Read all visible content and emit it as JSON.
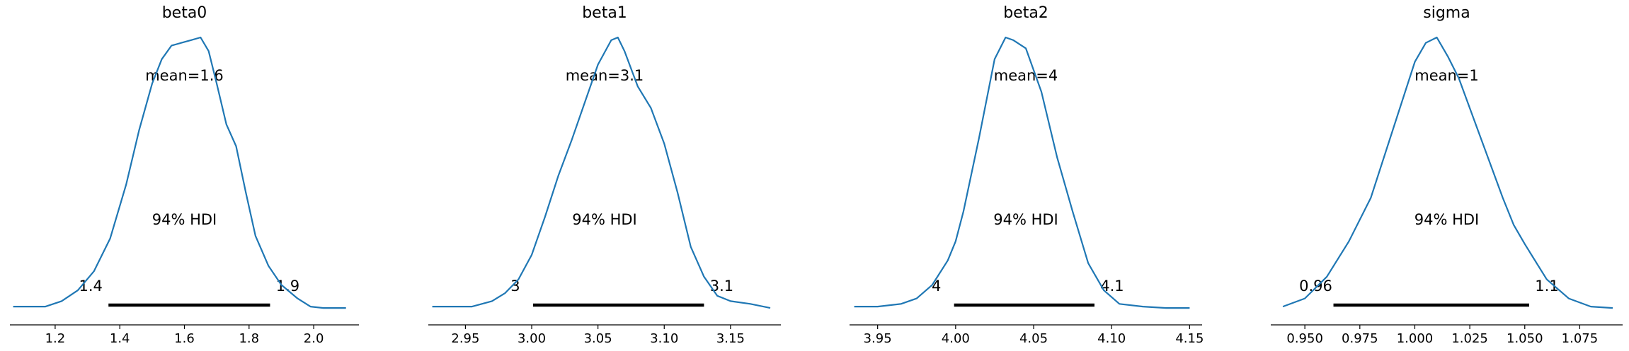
{
  "chart_data": [
    {
      "type": "area",
      "title": "beta0",
      "xlim": [
        1.06,
        2.14
      ],
      "ticks": [
        1.2,
        1.4,
        1.6,
        1.8,
        2.0
      ],
      "tick_labels": [
        "1.2",
        "1.4",
        "1.6",
        "1.8",
        "2.0"
      ],
      "mean_label": "mean=1.6",
      "hdi_label": "94% HDI",
      "hdi": [
        1.365,
        1.865
      ],
      "hdi_low_label": "1.4",
      "hdi_high_label": "1.9",
      "density": {
        "x": [
          1.07,
          1.12,
          1.17,
          1.22,
          1.27,
          1.32,
          1.37,
          1.42,
          1.46,
          1.5,
          1.53,
          1.56,
          1.59,
          1.62,
          1.65,
          1.675,
          1.7,
          1.73,
          1.76,
          1.79,
          1.82,
          1.86,
          1.9,
          1.95,
          1.99,
          2.03,
          2.07,
          2.1
        ],
        "y": [
          0.01,
          0.01,
          0.01,
          0.03,
          0.07,
          0.14,
          0.26,
          0.46,
          0.66,
          0.83,
          0.92,
          0.97,
          0.98,
          0.99,
          1.0,
          0.95,
          0.83,
          0.68,
          0.6,
          0.43,
          0.27,
          0.16,
          0.09,
          0.04,
          0.01,
          0.005,
          0.005,
          0.005
        ]
      }
    },
    {
      "type": "area",
      "title": "beta1",
      "xlim": [
        2.922,
        3.188
      ],
      "ticks": [
        2.95,
        3.0,
        3.05,
        3.1,
        3.15
      ],
      "tick_labels": [
        "2.95",
        "3.00",
        "3.05",
        "3.10",
        "3.15"
      ],
      "mean_label": "mean=3.1",
      "hdi_label": "94% HDI",
      "hdi": [
        3.001,
        3.13
      ],
      "hdi_low_label": "3",
      "hdi_high_label": "3.1",
      "density": {
        "x": [
          2.925,
          2.94,
          2.955,
          2.97,
          2.98,
          2.99,
          3.0,
          3.01,
          3.02,
          3.03,
          3.04,
          3.05,
          3.06,
          3.065,
          3.07,
          3.08,
          3.09,
          3.1,
          3.11,
          3.12,
          3.13,
          3.14,
          3.15,
          3.165,
          3.18
        ],
        "y": [
          0.01,
          0.01,
          0.01,
          0.03,
          0.06,
          0.11,
          0.2,
          0.34,
          0.49,
          0.62,
          0.76,
          0.9,
          0.99,
          1.0,
          0.95,
          0.82,
          0.74,
          0.61,
          0.43,
          0.23,
          0.12,
          0.05,
          0.03,
          0.02,
          0.005
        ]
      }
    },
    {
      "type": "area",
      "title": "beta2",
      "xlim": [
        3.932,
        4.158
      ],
      "ticks": [
        3.95,
        4.0,
        4.05,
        4.1,
        4.15
      ],
      "tick_labels": [
        "3.95",
        "4.00",
        "4.05",
        "4.10",
        "4.15"
      ],
      "mean_label": "mean=4",
      "hdi_label": "94% HDI",
      "hdi": [
        3.999,
        4.089
      ],
      "hdi_low_label": "4",
      "hdi_high_label": "4.1",
      "density": {
        "x": [
          3.935,
          3.95,
          3.965,
          3.975,
          3.985,
          3.995,
          4.0,
          4.005,
          4.015,
          4.025,
          4.032,
          4.037,
          4.045,
          4.055,
          4.065,
          4.075,
          4.085,
          4.095,
          4.105,
          4.12,
          4.135,
          4.15
        ],
        "y": [
          0.01,
          0.01,
          0.02,
          0.04,
          0.09,
          0.18,
          0.25,
          0.36,
          0.63,
          0.92,
          1.0,
          0.99,
          0.96,
          0.8,
          0.56,
          0.36,
          0.17,
          0.07,
          0.02,
          0.01,
          0.005,
          0.005
        ]
      }
    },
    {
      "type": "area",
      "title": "sigma",
      "xlim": [
        0.9345,
        1.0945
      ],
      "ticks": [
        0.95,
        0.975,
        1.0,
        1.025,
        1.05,
        1.075
      ],
      "tick_labels": [
        "0.950",
        "0.975",
        "1.000",
        "1.025",
        "1.050",
        "1.075"
      ],
      "mean_label": "mean=1",
      "hdi_label": "94% HDI",
      "hdi": [
        0.963,
        1.052
      ],
      "hdi_low_label": "0.96",
      "hdi_high_label": "1.1",
      "density": {
        "x": [
          0.94,
          0.95,
          0.96,
          0.97,
          0.98,
          0.99,
          1.0,
          1.005,
          1.01,
          1.015,
          1.02,
          1.03,
          1.04,
          1.045,
          1.05,
          1.06,
          1.07,
          1.08,
          1.09
        ],
        "y": [
          0.01,
          0.04,
          0.12,
          0.25,
          0.41,
          0.66,
          0.91,
          0.98,
          1.0,
          0.93,
          0.85,
          0.63,
          0.41,
          0.31,
          0.24,
          0.11,
          0.04,
          0.01,
          0.005
        ]
      }
    }
  ],
  "colors": {
    "density": "#1f77b4",
    "hdi": "#000000",
    "axis": "#000000"
  }
}
